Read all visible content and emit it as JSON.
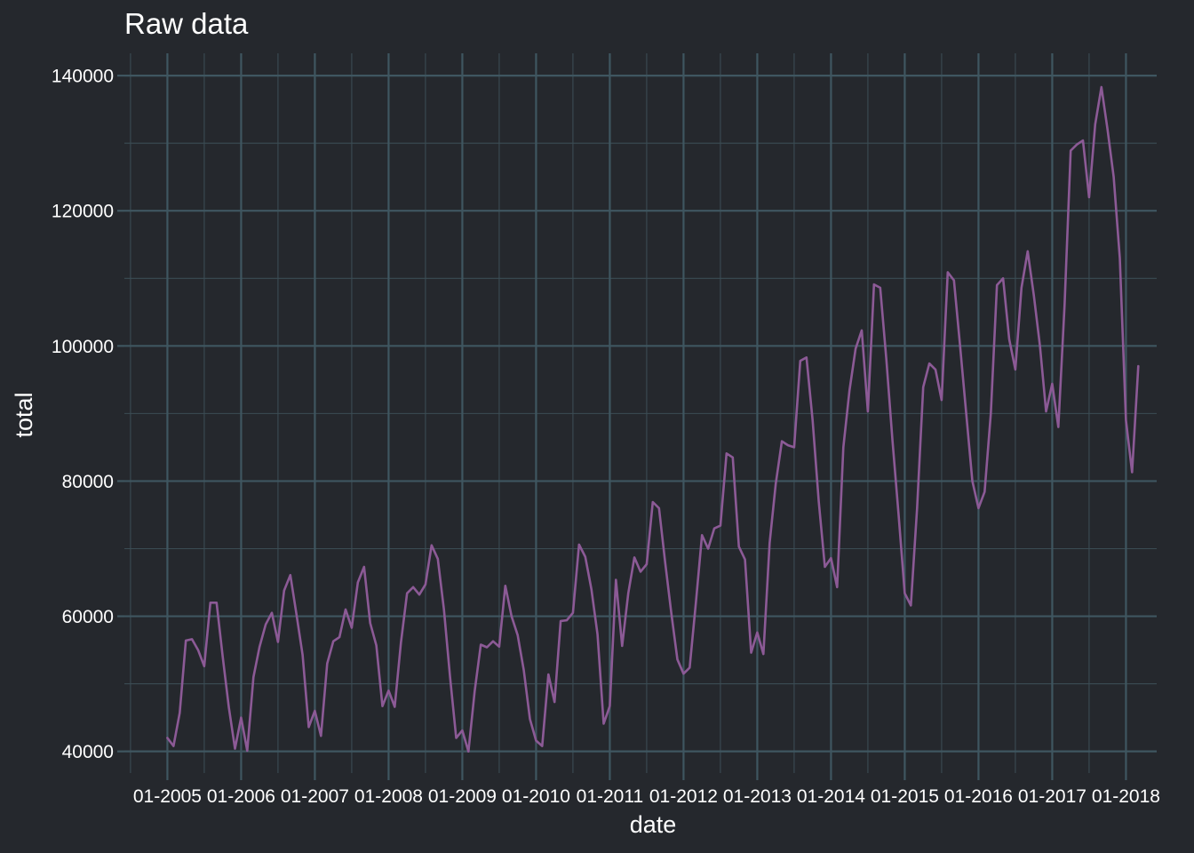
{
  "chart_data": {
    "type": "line",
    "title": "Raw data",
    "xlabel": "date",
    "ylabel": "total",
    "x_axis_type": "date",
    "x_tick_labels": [
      "01-2005",
      "01-2006",
      "01-2007",
      "01-2008",
      "01-2009",
      "01-2010",
      "01-2011",
      "01-2012",
      "01-2013",
      "01-2014",
      "01-2015",
      "01-2016",
      "01-2017",
      "01-2018"
    ],
    "y_ticks": [
      40000,
      60000,
      80000,
      100000,
      120000,
      140000
    ],
    "ylim": [
      36800,
      143300
    ],
    "xlim": [
      "2004-06-01",
      "2018-06-01"
    ],
    "grid": true,
    "colors": {
      "background": "#25282d",
      "grid": "#3f5660",
      "line": "#8c5a96",
      "text": "#ffffff"
    },
    "series": [
      {
        "x": [
          "2005-01",
          "2005-02",
          "2005-03",
          "2005-04",
          "2005-05",
          "2005-06",
          "2005-07",
          "2005-08",
          "2005-09",
          "2005-10",
          "2005-11",
          "2005-12",
          "2006-01",
          "2006-02",
          "2006-03",
          "2006-04",
          "2006-05",
          "2006-06",
          "2006-07",
          "2006-08",
          "2006-09",
          "2006-10",
          "2006-11",
          "2006-12",
          "2007-01",
          "2007-02",
          "2007-03",
          "2007-04",
          "2007-05",
          "2007-06",
          "2007-07",
          "2007-08",
          "2007-09",
          "2007-10",
          "2007-11",
          "2007-12",
          "2008-01",
          "2008-02",
          "2008-03",
          "2008-04",
          "2008-05",
          "2008-06",
          "2008-07",
          "2008-08",
          "2008-09",
          "2008-10",
          "2008-11",
          "2008-12",
          "2009-01",
          "2009-02",
          "2009-03",
          "2009-04",
          "2009-05",
          "2009-06",
          "2009-07",
          "2009-08",
          "2009-09",
          "2009-10",
          "2009-11",
          "2009-12",
          "2010-01",
          "2010-02",
          "2010-03",
          "2010-04",
          "2010-05",
          "2010-06",
          "2010-07",
          "2010-08",
          "2010-09",
          "2010-10",
          "2010-11",
          "2010-12",
          "2011-01",
          "2011-02",
          "2011-03",
          "2011-04",
          "2011-05",
          "2011-06",
          "2011-07",
          "2011-08",
          "2011-09",
          "2011-10",
          "2011-11",
          "2011-12",
          "2012-01",
          "2012-02",
          "2012-03",
          "2012-04",
          "2012-05",
          "2012-06",
          "2012-07",
          "2012-08",
          "2012-09",
          "2012-10",
          "2012-11",
          "2012-12",
          "2013-01",
          "2013-02",
          "2013-03",
          "2013-04",
          "2013-05",
          "2013-06",
          "2013-07",
          "2013-08",
          "2013-09",
          "2013-10",
          "2013-11",
          "2013-12",
          "2014-01",
          "2014-02",
          "2014-03",
          "2014-04",
          "2014-05",
          "2014-06",
          "2014-07",
          "2014-08",
          "2014-09",
          "2014-10",
          "2014-11",
          "2014-12",
          "2015-01",
          "2015-02",
          "2015-03",
          "2015-04",
          "2015-05",
          "2015-06",
          "2015-07",
          "2015-08",
          "2015-09",
          "2015-10",
          "2015-11",
          "2015-12",
          "2016-01",
          "2016-02",
          "2016-03",
          "2016-04",
          "2016-05",
          "2016-06",
          "2016-07",
          "2016-08",
          "2016-09",
          "2016-10",
          "2016-11",
          "2016-12",
          "2017-01",
          "2017-02",
          "2017-03",
          "2017-04",
          "2017-05",
          "2017-06",
          "2017-07",
          "2017-08",
          "2017-09",
          "2017-10",
          "2017-11",
          "2017-12",
          "2018-01",
          "2018-02",
          "2018-03"
        ],
        "y": [
          42000,
          40800,
          45700,
          56400,
          56600,
          55000,
          52600,
          62000,
          62000,
          54000,
          46500,
          40400,
          45000,
          40100,
          51000,
          55500,
          58800,
          60500,
          56200,
          63800,
          66100,
          60300,
          54300,
          43600,
          46000,
          42300,
          53000,
          56300,
          56900,
          61000,
          58300,
          65000,
          67300,
          59000,
          55700,
          46700,
          49000,
          46600,
          56100,
          63400,
          64300,
          63200,
          64700,
          70500,
          68500,
          61000,
          51000,
          42000,
          43100,
          40000,
          48900,
          55800,
          55400,
          56300,
          55500,
          64500,
          60000,
          57200,
          52000,
          44800,
          41600,
          40800,
          51400,
          47300,
          59300,
          59400,
          60500,
          70600,
          68800,
          64000,
          57300,
          44100,
          46700,
          65400,
          55600,
          63400,
          68700,
          66600,
          67700,
          76900,
          76000,
          68000,
          60500,
          53600,
          51500,
          52400,
          62000,
          72000,
          70000,
          73000,
          73400,
          84100,
          83500,
          70300,
          68400,
          54600,
          57600,
          54400,
          70800,
          79600,
          85900,
          85300,
          85000,
          97800,
          98300,
          89000,
          77000,
          67300,
          68600,
          64300,
          85000,
          93400,
          99600,
          102300,
          90300,
          109100,
          108600,
          98000,
          86000,
          75000,
          63400,
          61600,
          76000,
          93900,
          97400,
          96500,
          92000,
          110900,
          109700,
          100000,
          90000,
          80000,
          76000,
          78400,
          90000,
          109000,
          110000,
          101000,
          96500,
          108600,
          114000,
          107500,
          100000,
          90300,
          94400,
          88000,
          106000,
          128900,
          129800,
          130400,
          122000,
          132800,
          138300,
          132000,
          125000,
          113000,
          89000,
          81300,
          97000
        ]
      }
    ]
  }
}
